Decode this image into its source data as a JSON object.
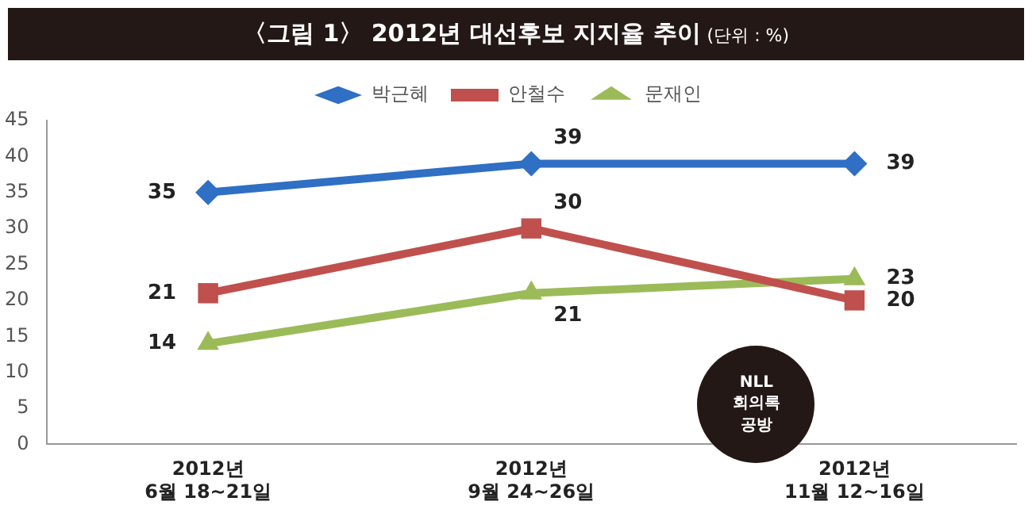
{
  "chart_data": {
    "type": "line",
    "title": "〈그림 1〉 2012년 대선후보 지지율 추이",
    "subtitle": "(단위 : %)",
    "categories": [
      "2012년\n6월 18~21일",
      "2012년\n9월 24~26일",
      "2012년\n11월 12~16일"
    ],
    "series": [
      {
        "name": "박근혜",
        "color": "#2f6fc4",
        "marker": "diamond",
        "values": [
          35,
          39,
          39
        ]
      },
      {
        "name": "안철수",
        "color": "#c0504d",
        "marker": "square",
        "values": [
          21,
          30,
          20
        ]
      },
      {
        "name": "문재인",
        "color": "#9bbb59",
        "marker": "triangle",
        "values": [
          14,
          21,
          23
        ]
      }
    ],
    "ylim": [
      0,
      45
    ],
    "yticks": [
      0,
      5,
      10,
      15,
      20,
      25,
      30,
      35,
      40,
      45
    ],
    "grid": false,
    "legend": "top",
    "data_labels": true,
    "annotations": [
      "NLL\n회의록\n공방"
    ]
  }
}
